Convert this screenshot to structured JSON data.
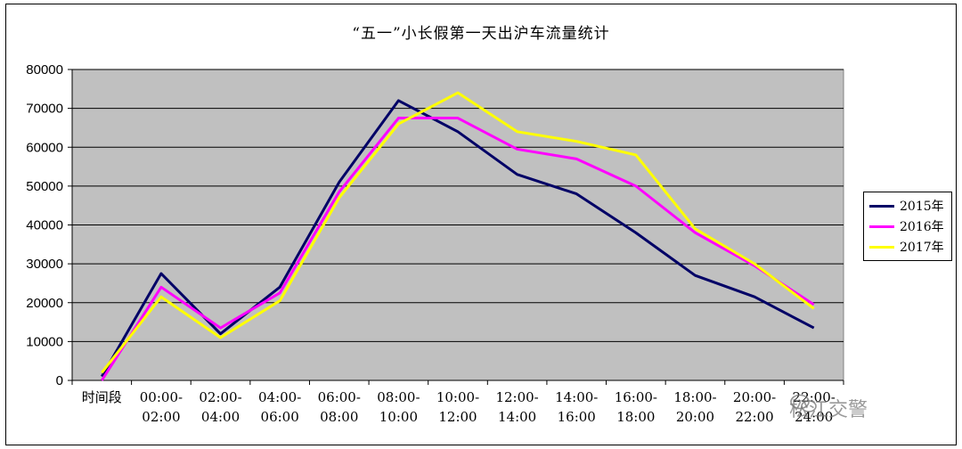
{
  "chart_data": {
    "type": "line",
    "title": "“五一”小长假第一天出沪车流量统计",
    "xlabel": "",
    "ylabel": "",
    "ylim": [
      0,
      80000
    ],
    "yticks": [
      0,
      10000,
      20000,
      30000,
      40000,
      50000,
      60000,
      70000,
      80000
    ],
    "grid": true,
    "legend_position": "right",
    "categories": [
      "时间段",
      "00:00-\n02:00",
      "02:00-\n04:00",
      "04:00-\n06:00",
      "06:00-\n08:00",
      "08:00-\n10:00",
      "10:00-\n12:00",
      "12:00-\n14:00",
      "14:00-\n16:00",
      "16:00-\n18:00",
      "18:00-\n20:00",
      "20:00-\n22:00",
      "22:00-\n24:00"
    ],
    "series": [
      {
        "name": "2015年",
        "color": "#000066",
        "values": [
          1000,
          27500,
          12000,
          24000,
          51000,
          72000,
          64000,
          53000,
          48000,
          38000,
          27000,
          21500,
          13500
        ]
      },
      {
        "name": "2016年",
        "color": "#ff00ff",
        "values": [
          0,
          24000,
          13500,
          22500,
          48500,
          67500,
          67500,
          59500,
          57000,
          50000,
          38000,
          29500,
          19500
        ]
      },
      {
        "name": "2017年",
        "color": "#ffff00",
        "values": [
          2000,
          21500,
          11000,
          20500,
          47000,
          66000,
          74000,
          64000,
          61500,
          58000,
          39000,
          30000,
          18500
        ]
      }
    ]
  },
  "watermark": {
    "text": "松江交警",
    "icon": "wechat-icon"
  }
}
